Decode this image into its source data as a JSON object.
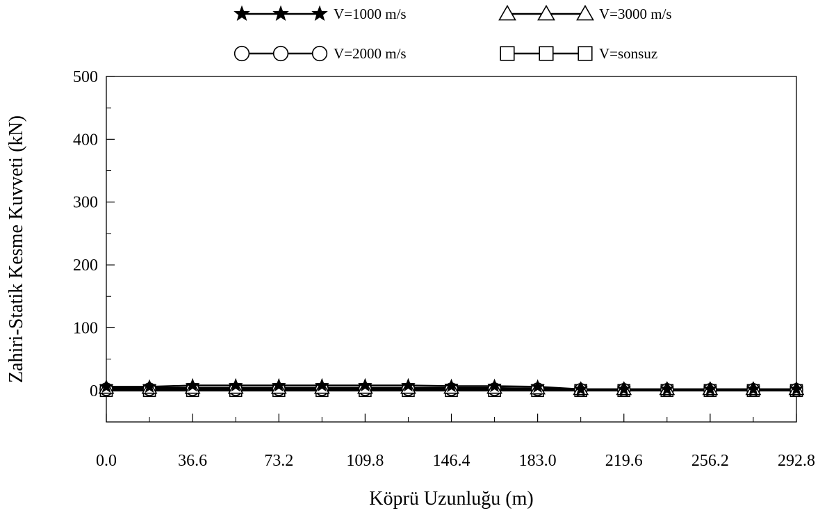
{
  "chart_data": {
    "type": "line",
    "xlabel": "Köprü Uzunluğu (m)",
    "ylabel": "Zahiri-Statik Kesme Kuvveti (kN)",
    "xlim": [
      0,
      292.8
    ],
    "ylim": [
      -50,
      500
    ],
    "x_ticks": [
      "0.0",
      "36.6",
      "73.2",
      "109.8",
      "146.4",
      "183.0",
      "219.6",
      "256.2",
      "292.8"
    ],
    "y_ticks": [
      "0",
      "100",
      "200",
      "300",
      "400",
      "500"
    ],
    "x_tick_values": [
      0,
      36.6,
      73.2,
      109.8,
      146.4,
      183.0,
      219.6,
      256.2,
      292.8
    ],
    "y_tick_values": [
      0,
      100,
      200,
      300,
      400,
      500
    ],
    "x": [
      0,
      18.3,
      36.6,
      54.9,
      73.2,
      91.5,
      109.8,
      128.1,
      146.4,
      164.7,
      183.0,
      201.3,
      219.6,
      237.9,
      256.2,
      274.5,
      292.8
    ],
    "series": [
      {
        "name": "V=1000 m/s",
        "marker": "star",
        "values": [
          6,
          6,
          8,
          8,
          8,
          8,
          8,
          8,
          7,
          7,
          6,
          2,
          2,
          2,
          2,
          2,
          2
        ]
      },
      {
        "name": "V=3000 m/s",
        "marker": "triangle",
        "values": [
          4,
          4,
          4,
          4,
          4,
          4,
          4,
          4,
          4,
          4,
          3,
          2,
          2,
          2,
          2,
          2,
          2
        ]
      },
      {
        "name": "V=2000 m/s",
        "marker": "circle",
        "values": [
          2,
          2,
          2,
          2,
          2,
          2,
          2,
          2,
          2,
          2,
          2,
          1,
          1,
          1,
          1,
          1,
          1
        ]
      },
      {
        "name": "V=sonsuz",
        "marker": "square",
        "values": [
          0,
          0,
          0,
          0,
          0,
          0,
          0,
          0,
          0,
          0,
          0,
          0,
          0,
          0,
          0,
          0,
          0
        ]
      }
    ],
    "legend_placement": "top",
    "grid": false
  }
}
